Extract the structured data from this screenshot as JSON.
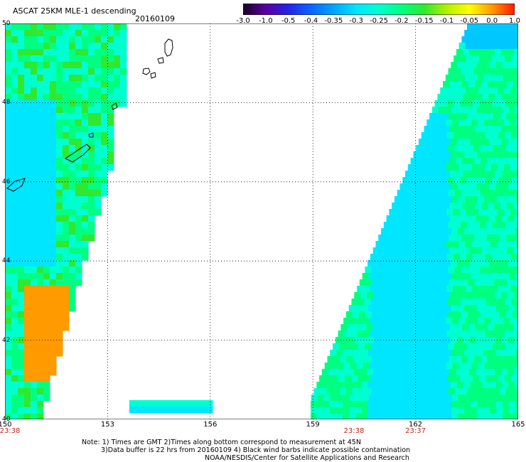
{
  "header": {
    "title": "ASCAT 25KM MLE-1 descending",
    "date": "20160109"
  },
  "colorbar": {
    "ticks": [
      "-3.0",
      "-1.0",
      "-0.5",
      "-0.4",
      "-0.35",
      "-0.3",
      "-0.25",
      "-0.2",
      "-0.15",
      "-0.1",
      "-0.05",
      "0.0",
      "1.0"
    ],
    "colors": [
      "#1a0026",
      "#5a00a0",
      "#2424e6",
      "#0a64ff",
      "#00a6ff",
      "#00e6ff",
      "#00ffd0",
      "#00ff80",
      "#30e830",
      "#b4f000",
      "#ffff00",
      "#ff9a00",
      "#ff1a00"
    ]
  },
  "map": {
    "lat_labels": [
      "50",
      "48",
      "46",
      "44",
      "42",
      "40"
    ],
    "lon_labels": [
      "150",
      "153",
      "156",
      "159",
      "162",
      "165"
    ],
    "lat_range": [
      40,
      50
    ],
    "lon_range": [
      150,
      165
    ],
    "gridlines": true,
    "swath_times": [
      {
        "text": "23:38",
        "lon": 150
      },
      {
        "text": "23:38",
        "lon": 160.2
      },
      {
        "text": "23:37",
        "lon": 162
      }
    ]
  },
  "footer": {
    "note_line1": "Note: 1) Times are GMT 2)Times along bottom correspond to measurement at 45N",
    "note_line2": "3)Data buffer is 22 hrs from 20160109 4) Black wind barbs indicate possible contamination",
    "note_line3": "NOAA/NESDIS/Center for Satellite Applications and Research"
  }
}
